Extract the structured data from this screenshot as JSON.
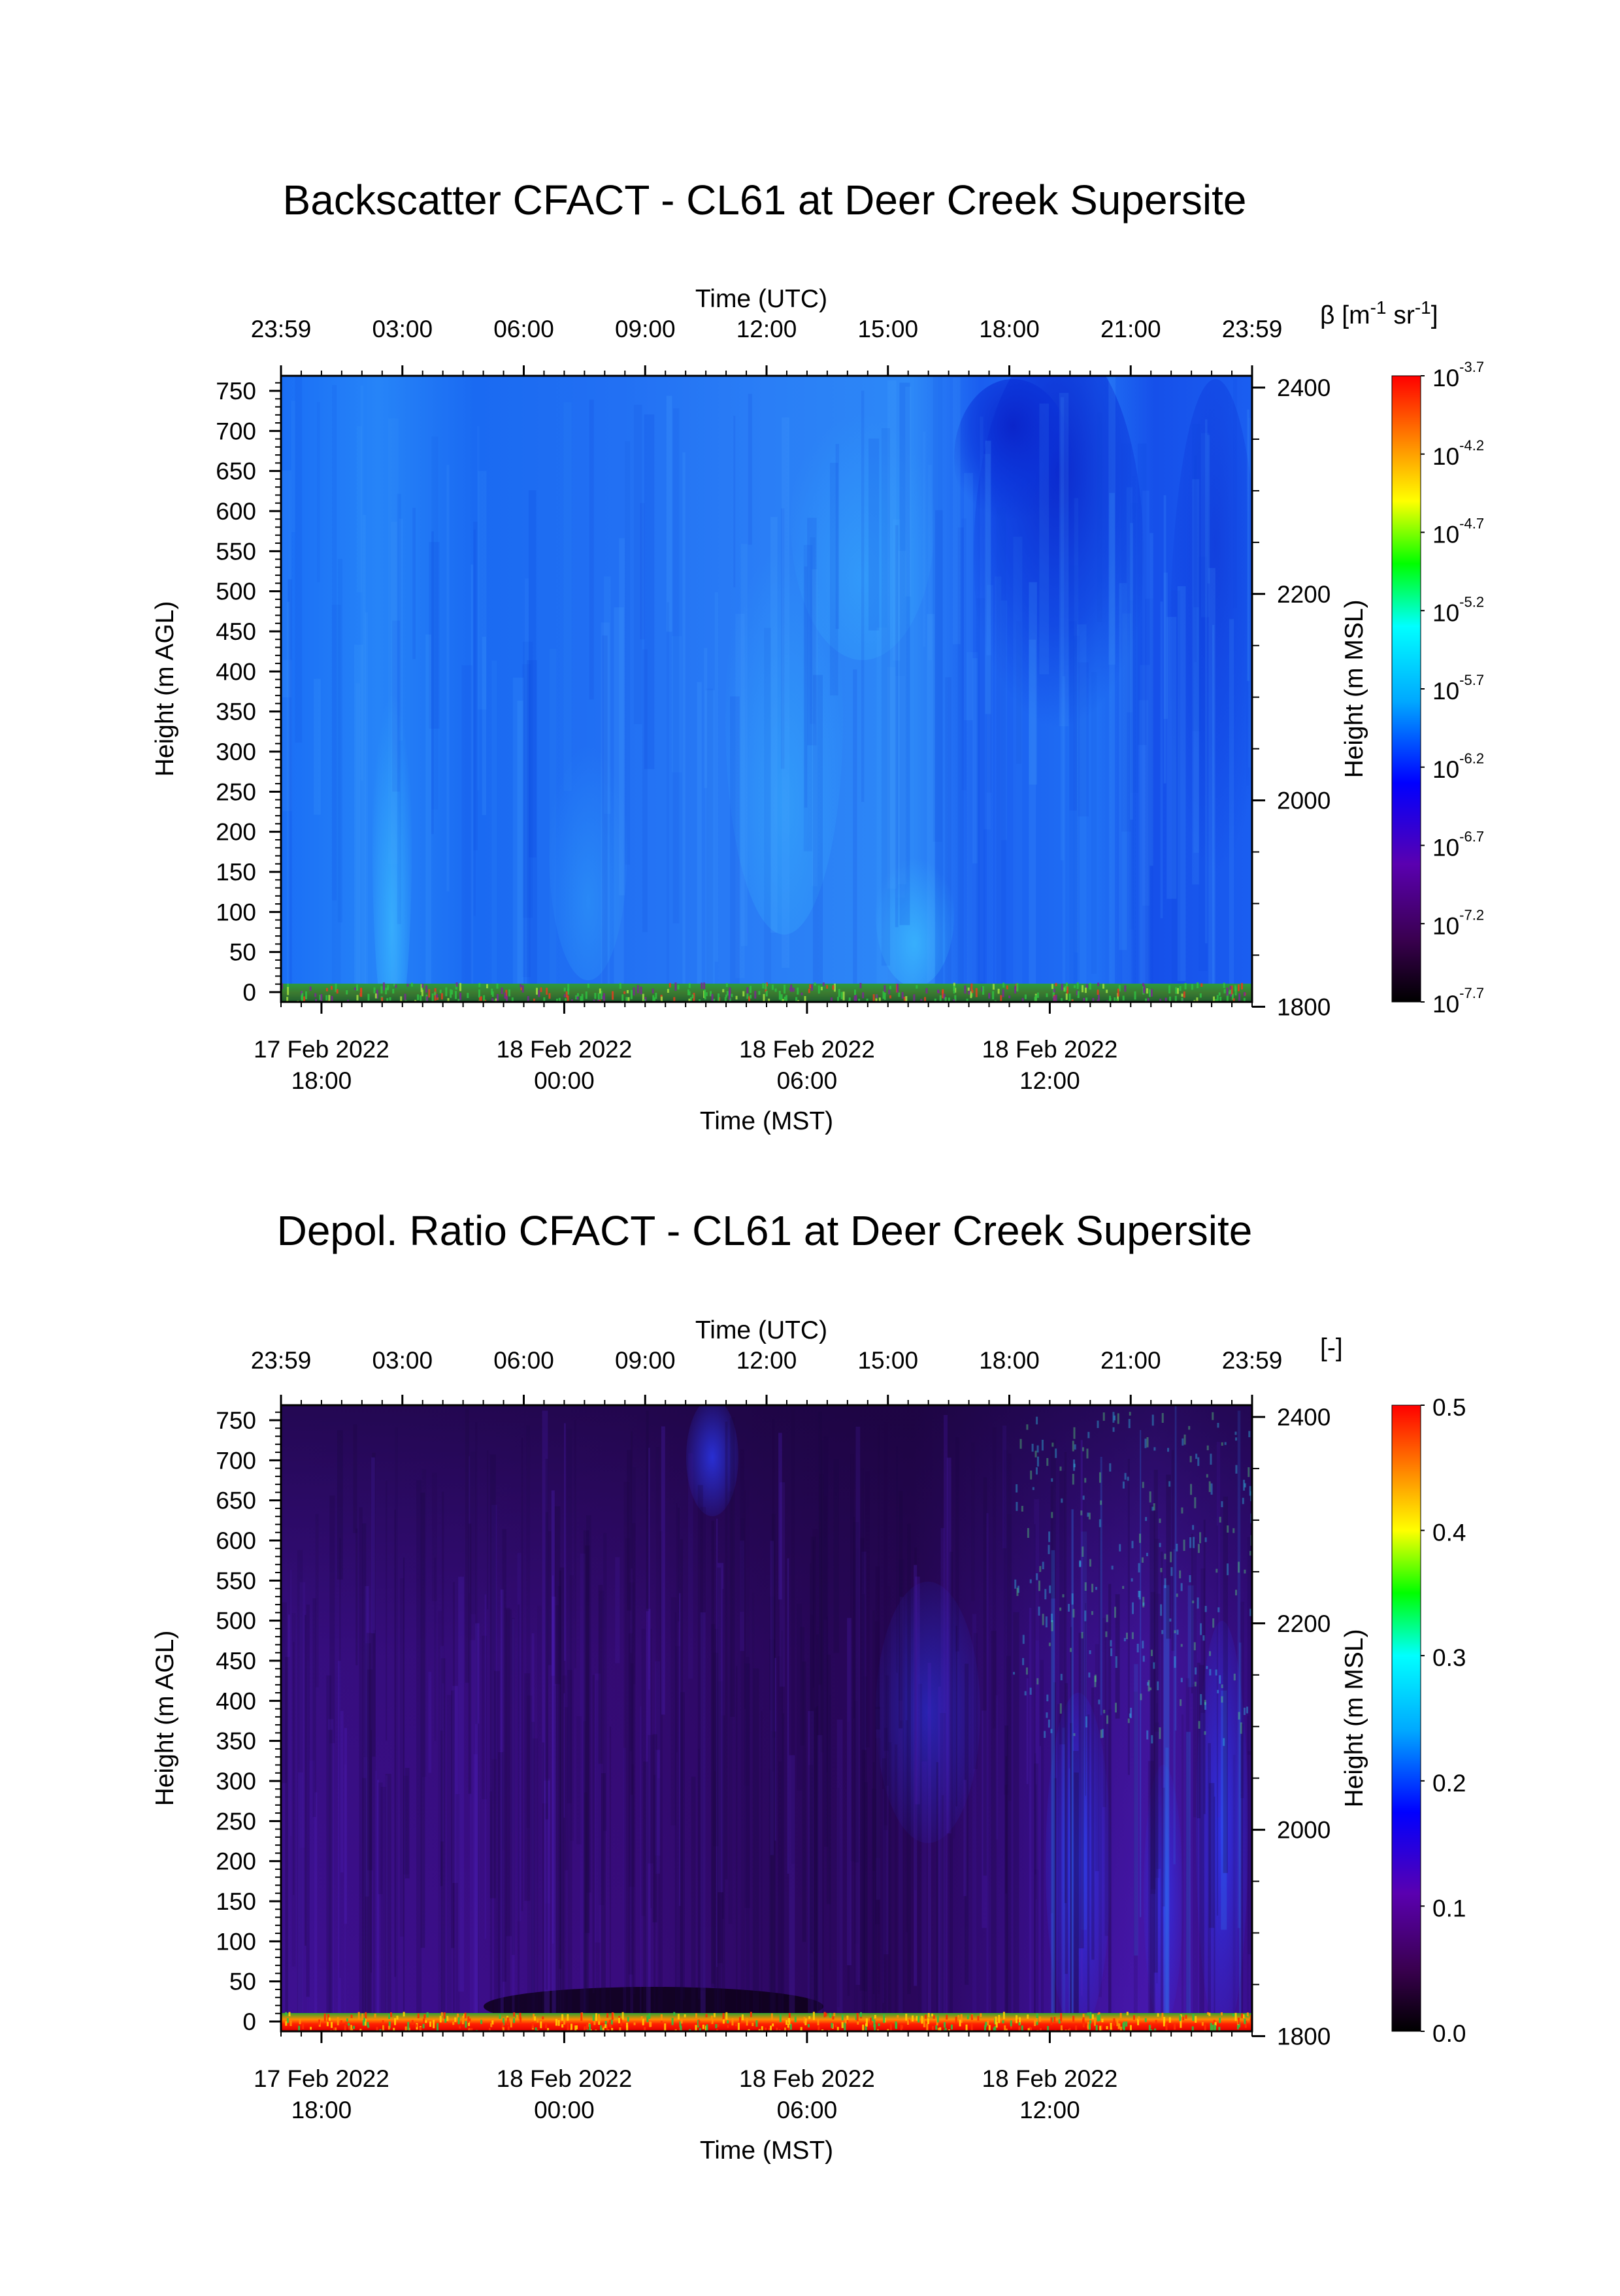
{
  "charts": [
    {
      "title": "Backscatter CFACT - CL61 at Deer Creek Supersite",
      "top_axis_label": "Time (UTC)",
      "top_ticks": [
        "23:59",
        "03:00",
        "06:00",
        "09:00",
        "12:00",
        "15:00",
        "18:00",
        "21:00",
        "23:59"
      ],
      "bottom_axis_label": "Time (MST)",
      "bottom_ticks": [
        {
          "date": "17 Feb 2022",
          "time": "18:00"
        },
        {
          "date": "18 Feb 2022",
          "time": "00:00"
        },
        {
          "date": "18 Feb 2022",
          "time": "06:00"
        },
        {
          "date": "18 Feb 2022",
          "time": "12:00"
        }
      ],
      "left_axis_label": "Height (m AGL)",
      "left_ticks": [
        "750",
        "700",
        "650",
        "600",
        "550",
        "500",
        "450",
        "400",
        "350",
        "300",
        "250",
        "200",
        "150",
        "100",
        "50",
        "0"
      ],
      "right_axis_label": "Height (m MSL)",
      "right_ticks": [
        "2400",
        "2200",
        "2000",
        "1800"
      ],
      "colorbar_title": {
        "prefix": "β [m",
        "e1": "-1",
        "mid": " sr",
        "e2": "-1",
        "suffix": "]"
      },
      "colorbar_ticks": [
        {
          "base": "10",
          "exp": "-3.7"
        },
        {
          "base": "10",
          "exp": "-4.2"
        },
        {
          "base": "10",
          "exp": "-4.7"
        },
        {
          "base": "10",
          "exp": "-5.2"
        },
        {
          "base": "10",
          "exp": "-5.7"
        },
        {
          "base": "10",
          "exp": "-6.2"
        },
        {
          "base": "10",
          "exp": "-6.7"
        },
        {
          "base": "10",
          "exp": "-7.2"
        },
        {
          "base": "10",
          "exp": "-7.7"
        }
      ]
    },
    {
      "title": "Depol. Ratio CFACT - CL61 at Deer Creek Supersite",
      "top_axis_label": "Time (UTC)",
      "top_ticks": [
        "23:59",
        "03:00",
        "06:00",
        "09:00",
        "12:00",
        "15:00",
        "18:00",
        "21:00",
        "23:59"
      ],
      "bottom_axis_label": "Time (MST)",
      "bottom_ticks": [
        {
          "date": "17 Feb 2022",
          "time": "18:00"
        },
        {
          "date": "18 Feb 2022",
          "time": "00:00"
        },
        {
          "date": "18 Feb 2022",
          "time": "06:00"
        },
        {
          "date": "18 Feb 2022",
          "time": "12:00"
        }
      ],
      "left_axis_label": "Height (m AGL)",
      "left_ticks": [
        "750",
        "700",
        "650",
        "600",
        "550",
        "500",
        "450",
        "400",
        "350",
        "300",
        "250",
        "200",
        "150",
        "100",
        "50",
        "0"
      ],
      "right_axis_label": "Height (m MSL)",
      "right_ticks": [
        "2400",
        "2200",
        "2000",
        "1800"
      ],
      "colorbar_title": {
        "prefix": "[-]",
        "e1": "",
        "mid": "",
        "e2": "",
        "suffix": ""
      },
      "colorbar_ticks": [
        {
          "base": "0.5",
          "exp": ""
        },
        {
          "base": "0.4",
          "exp": ""
        },
        {
          "base": "0.3",
          "exp": ""
        },
        {
          "base": "0.2",
          "exp": ""
        },
        {
          "base": "0.1",
          "exp": ""
        },
        {
          "base": "0.0",
          "exp": ""
        }
      ]
    }
  ],
  "chart_data": [
    {
      "type": "heatmap",
      "title": "Backscatter CFACT - CL61 at Deer Creek Supersite",
      "variable": "β [m-1 sr-1]",
      "x_top_label": "Time (UTC)",
      "x_top_range": [
        "23:59",
        "23:59"
      ],
      "x_bottom_label": "Time (MST)",
      "y_left_label": "Height (m AGL)",
      "y_left_range": [
        0,
        760
      ],
      "y_right_label": "Height (m MSL)",
      "y_right_ticks": [
        2400,
        2200,
        2000,
        1800
      ],
      "color_scale": "log",
      "color_range": [
        "10^-7.7",
        "10^-3.7"
      ],
      "colormap": [
        "#000000",
        "#5a007a",
        "#0000ff",
        "#00d4ff",
        "#00ff00",
        "#ffff00",
        "#ff8000",
        "#ff0000"
      ],
      "description_of_field": "Mostly uniform blue (~10^-6.7 to 10^-6.2) throughout; brighter cyan streaks near surface; darker blue region 18:00–21:00 UTC aloft; green/red speckle in lowest ~20 m."
    },
    {
      "type": "heatmap",
      "title": "Depol. Ratio CFACT - CL61 at Deer Creek Supersite",
      "variable": "[-]",
      "x_top_label": "Time (UTC)",
      "x_top_range": [
        "23:59",
        "23:59"
      ],
      "x_bottom_label": "Time (MST)",
      "y_left_label": "Height (m AGL)",
      "y_left_range": [
        0,
        760
      ],
      "y_right_label": "Height (m MSL)",
      "y_right_ticks": [
        2400,
        2200,
        2000,
        1800
      ],
      "color_scale": "linear",
      "color_range": [
        0.0,
        0.5
      ],
      "colormap": [
        "#000000",
        "#5a007a",
        "#0000ff",
        "#00d4ff",
        "#00ff00",
        "#ffff00",
        "#ff8000",
        "#ff0000"
      ],
      "description_of_field": "Predominantly dark purple (~0.05); blue/cyan plumes after 19:00 UTC and near 10:00 UTC aloft; red band near surface (~0.5)."
    }
  ]
}
